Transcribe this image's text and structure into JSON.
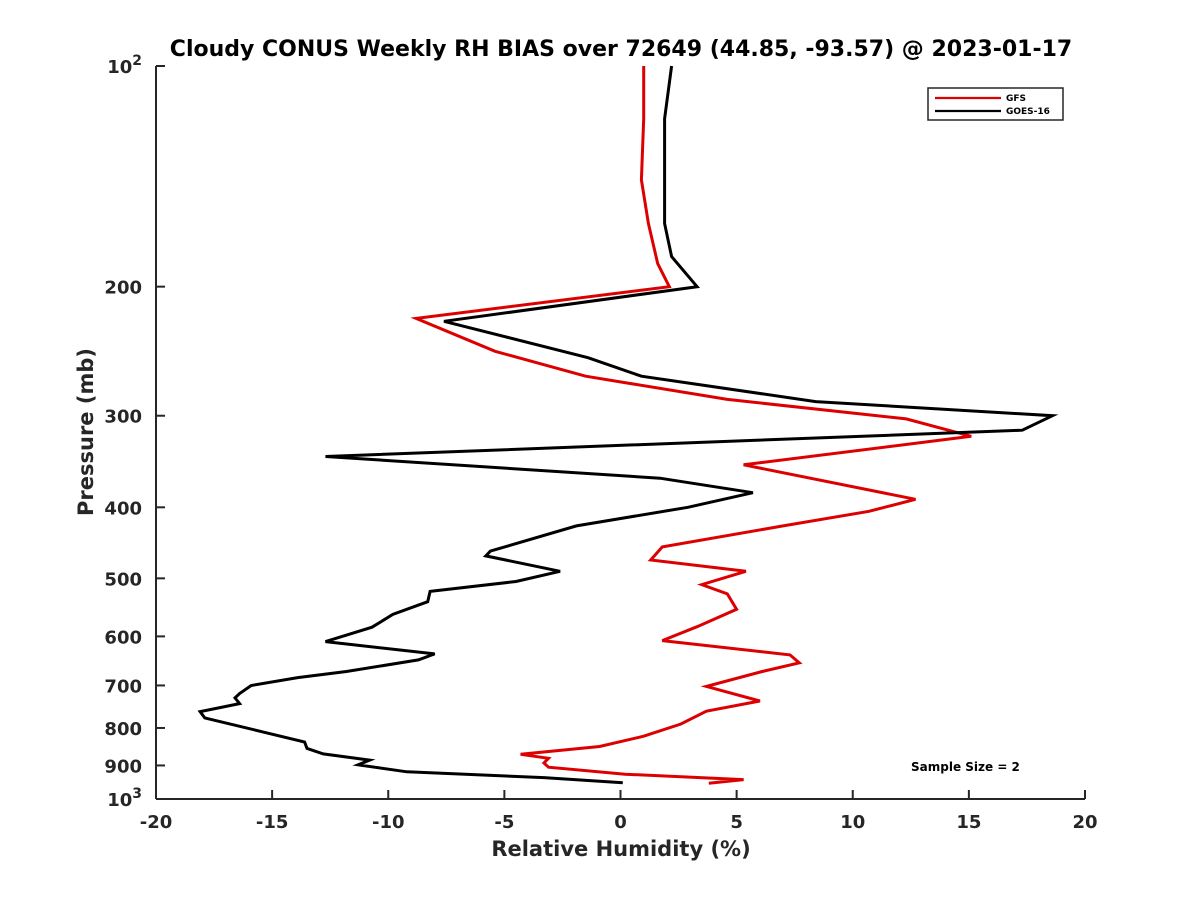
{
  "chart_data": {
    "type": "line",
    "title": "Cloudy CONUS Weekly RH BIAS over 72649 (44.85, -93.57) @ 2023-01-17",
    "xlabel": "Relative Humidity (%)",
    "ylabel": "Pressure (mb)",
    "xlim": [
      -20,
      20
    ],
    "ylim": [
      100,
      1000
    ],
    "yscale": "log",
    "y_reversed": true,
    "xticks": [
      -20,
      -15,
      -10,
      -5,
      0,
      5,
      10,
      15,
      20
    ],
    "xtick_labels": [
      "-20",
      "-15",
      "-10",
      "-5",
      "0",
      "5",
      "10",
      "15",
      "20"
    ],
    "yticks": [
      {
        "value": 100,
        "base": "10",
        "exp": "2"
      },
      {
        "value": 200,
        "label": "200"
      },
      {
        "value": 300,
        "label": "300"
      },
      {
        "value": 400,
        "label": "400"
      },
      {
        "value": 500,
        "label": "500"
      },
      {
        "value": 600,
        "label": "600"
      },
      {
        "value": 700,
        "label": "700"
      },
      {
        "value": 800,
        "label": "800"
      },
      {
        "value": 900,
        "label": "900"
      },
      {
        "value": 1000,
        "base": "10",
        "exp": "3"
      }
    ],
    "grid": false,
    "legend_position": "top-right",
    "annotation": "Sample Size = 2",
    "series": [
      {
        "name": "GFS",
        "color": "#dd0000",
        "points": [
          [
            1.0,
            100
          ],
          [
            1.0,
            118
          ],
          [
            0.9,
            143
          ],
          [
            1.2,
            164
          ],
          [
            1.6,
            186
          ],
          [
            2.1,
            200
          ],
          [
            -8.8,
            221
          ],
          [
            -5.4,
            245
          ],
          [
            -1.5,
            265
          ],
          [
            4.6,
            285
          ],
          [
            12.3,
            303
          ],
          [
            15.1,
            320
          ],
          [
            5.3,
            350
          ],
          [
            12.7,
            390
          ],
          [
            10.7,
            405
          ],
          [
            7.0,
            424
          ],
          [
            1.8,
            453
          ],
          [
            1.3,
            472
          ],
          [
            5.4,
            489
          ],
          [
            3.5,
            510
          ],
          [
            4.6,
            525
          ],
          [
            5.0,
            551
          ],
          [
            3.3,
            582
          ],
          [
            1.8,
            608
          ],
          [
            7.3,
            636
          ],
          [
            7.7,
            652
          ],
          [
            6.1,
            670
          ],
          [
            3.7,
            702
          ],
          [
            6.0,
            735
          ],
          [
            3.7,
            759
          ],
          [
            2.6,
            790
          ],
          [
            1.0,
            821
          ],
          [
            -0.9,
            848
          ],
          [
            -4.3,
            869
          ],
          [
            -3.1,
            880
          ],
          [
            -3.3,
            893
          ],
          [
            -3.1,
            905
          ],
          [
            0.2,
            925
          ],
          [
            5.3,
            941
          ],
          [
            3.8,
            952
          ]
        ]
      },
      {
        "name": "GOES-16",
        "color": "#000000",
        "points": [
          [
            2.2,
            100
          ],
          [
            1.9,
            118
          ],
          [
            1.9,
            143
          ],
          [
            1.9,
            164
          ],
          [
            2.2,
            182
          ],
          [
            3.3,
            200
          ],
          [
            -7.6,
            223
          ],
          [
            -1.4,
            250
          ],
          [
            0.9,
            265
          ],
          [
            8.4,
            287
          ],
          [
            18.6,
            300
          ],
          [
            17.3,
            314
          ],
          [
            -12.7,
            341
          ],
          [
            1.7,
            365
          ],
          [
            5.7,
            382
          ],
          [
            2.9,
            400
          ],
          [
            -1.9,
            424
          ],
          [
            -5.6,
            459
          ],
          [
            -5.8,
            466
          ],
          [
            -2.6,
            489
          ],
          [
            -4.5,
            505
          ],
          [
            -8.2,
            521
          ],
          [
            -8.3,
            538
          ],
          [
            -9.8,
            560
          ],
          [
            -10.7,
            583
          ],
          [
            -12.7,
            610
          ],
          [
            -8.0,
            634
          ],
          [
            -8.7,
            646
          ],
          [
            -11.8,
            670
          ],
          [
            -13.9,
            683
          ],
          [
            -15.9,
            700
          ],
          [
            -16.4,
            718
          ],
          [
            -16.6,
            728
          ],
          [
            -16.4,
            741
          ],
          [
            -18.1,
            760
          ],
          [
            -17.9,
            775
          ],
          [
            -15.4,
            810
          ],
          [
            -13.6,
            836
          ],
          [
            -13.5,
            853
          ],
          [
            -12.8,
            868
          ],
          [
            -10.8,
            885
          ],
          [
            -11.3,
            898
          ],
          [
            -9.2,
            918
          ],
          [
            -3.3,
            935
          ],
          [
            0.1,
            950
          ]
        ]
      }
    ]
  }
}
